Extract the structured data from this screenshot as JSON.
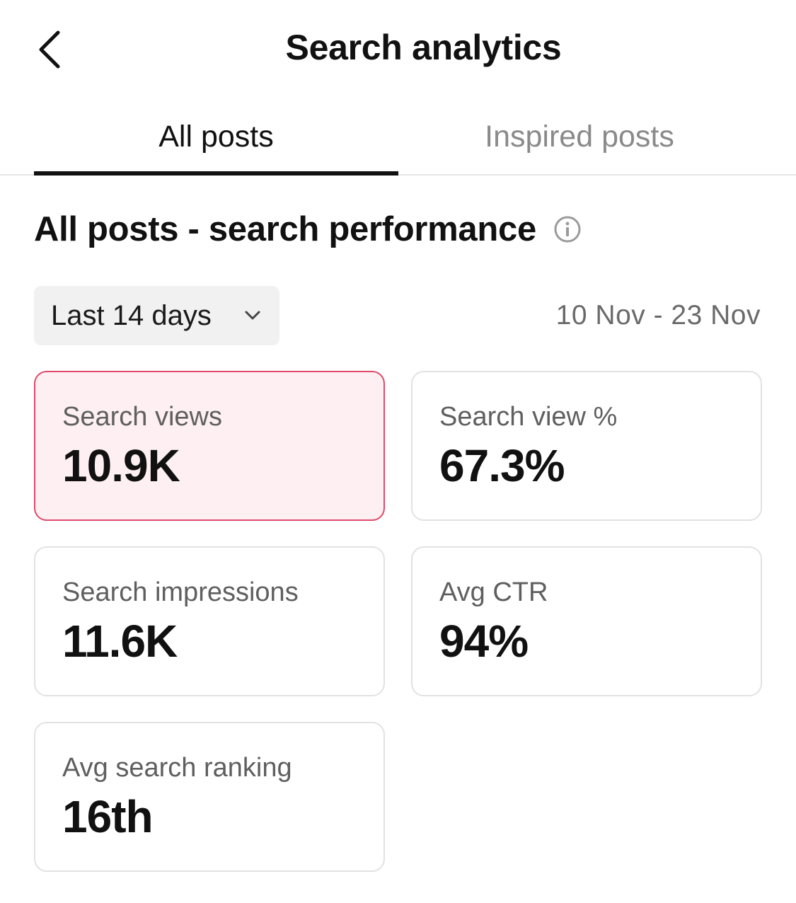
{
  "header": {
    "title": "Search analytics",
    "back_icon": "chevron-left-icon"
  },
  "tabs": [
    {
      "label": "All posts",
      "active": true
    },
    {
      "label": "Inspired posts",
      "active": false
    }
  ],
  "section": {
    "title": "All posts - search performance",
    "info_icon": "info-icon"
  },
  "filter": {
    "range_label": "Last 14 days",
    "date_range": "10 Nov - 23 Nov"
  },
  "metrics": [
    {
      "label": "Search views",
      "value": "10.9K",
      "selected": true
    },
    {
      "label": "Search view %",
      "value": "67.3%",
      "selected": false
    },
    {
      "label": "Search impressions",
      "value": "11.6K",
      "selected": false
    },
    {
      "label": "Avg CTR",
      "value": "94%",
      "selected": false
    },
    {
      "label": "Avg search ranking",
      "value": "16th",
      "selected": false
    }
  ],
  "colors": {
    "selected_border": "#e0496a",
    "selected_background": "#fef0f2",
    "text_primary": "#111111",
    "text_secondary": "#8a8a8a"
  }
}
